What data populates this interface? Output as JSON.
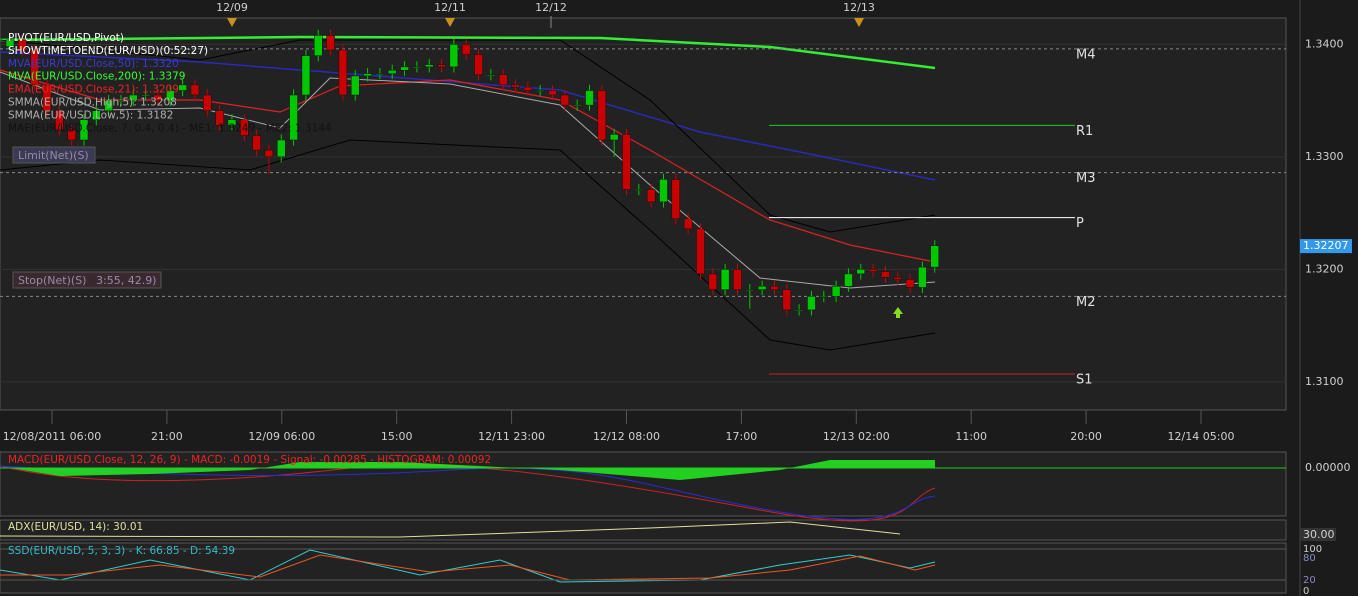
{
  "top_dates": [
    "12/09",
    "12/11",
    "12/12",
    "12/13"
  ],
  "indicators": [
    {
      "text": "PIVOT(EUR/USD,Pivot)",
      "color": "#ffffff"
    },
    {
      "text": "SHOWTIMETOEND(EUR/USD)(0:52:27)",
      "color": "#ffffff"
    },
    {
      "text": "MVA(EUR/USD.Close,50): 1.3320",
      "color": "#3a3ad8"
    },
    {
      "text": "MVA(EUR/USD.Close,200): 1.3379",
      "color": "#33ff33"
    },
    {
      "text": "EMA(EUR/USD.Close,21): 1.3209",
      "color": "#ee2222"
    },
    {
      "text": "SMMA(EUR/USD.High,5): 1.3208",
      "color": "#b0b0b0"
    },
    {
      "text": "SMMA(EUR/USD.Low,5): 1.3182",
      "color": "#b0b0b0"
    },
    {
      "text": "MAE(EUR/USD.Close, 7, 0.4, 0.4) - ME1: 1.3249 - ME2: 1.3144",
      "color": "#111111"
    }
  ],
  "buttons": {
    "limit": "Limit(Net)(S)",
    "stop": "Stop(Net)(S)",
    "stop_value": "3:55, 42.9)"
  },
  "price_axis": {
    "ylim": [
      1.3075,
      1.3411
    ],
    "yticks": [
      {
        "value": 1.34,
        "label": "1.3400"
      },
      {
        "value": 1.33,
        "label": "1.3300"
      },
      {
        "value": 1.32,
        "label": "1.3200"
      },
      {
        "value": 1.31,
        "label": "1.3100"
      }
    ],
    "current_price": 1.32207
  },
  "pivots": [
    {
      "label": "M4",
      "value": 1.3396,
      "color": "#888888",
      "dashed": true
    },
    {
      "label": "R1",
      "value": 1.3328,
      "color": "#22cc22",
      "dashed": false
    },
    {
      "label": "M3",
      "value": 1.3286,
      "color": "#888888",
      "dashed": true
    },
    {
      "label": "P",
      "value": 1.3246,
      "color": "#ffffff",
      "dashed": false
    },
    {
      "label": "M2",
      "value": 1.3176,
      "color": "#888888",
      "dashed": true
    },
    {
      "label": "S1",
      "value": 1.3107,
      "color": "#cc2222",
      "dashed": false
    }
  ],
  "candles": [
    [
      1.3398,
      1.3409,
      1.3393,
      1.3404
    ],
    [
      1.3404,
      1.3409,
      1.339,
      1.3395
    ],
    [
      1.3395,
      1.34,
      1.3359,
      1.3364
    ],
    [
      1.3364,
      1.3369,
      1.3336,
      1.3341
    ],
    [
      1.3341,
      1.3346,
      1.3319,
      1.3324
    ],
    [
      1.3324,
      1.3329,
      1.331,
      1.3315
    ],
    [
      1.3315,
      1.3338,
      1.331,
      1.3333
    ],
    [
      1.3333,
      1.3346,
      1.3328,
      1.3341
    ],
    [
      1.3341,
      1.3355,
      1.3336,
      1.335
    ],
    [
      1.335,
      1.3355,
      1.3345,
      1.335
    ],
    [
      1.335,
      1.336,
      1.3345,
      1.3355
    ],
    [
      1.3355,
      1.336,
      1.335,
      1.3355
    ],
    [
      1.3355,
      1.336,
      1.3345,
      1.335
    ],
    [
      1.335,
      1.3364,
      1.3345,
      1.3359
    ],
    [
      1.3359,
      1.3369,
      1.3354,
      1.3364
    ],
    [
      1.3364,
      1.3369,
      1.335,
      1.3355
    ],
    [
      1.3355,
      1.336,
      1.3336,
      1.3341
    ],
    [
      1.3341,
      1.3346,
      1.3323,
      1.3328
    ],
    [
      1.3328,
      1.3338,
      1.3323,
      1.3333
    ],
    [
      1.3333,
      1.3338,
      1.3314,
      1.3319
    ],
    [
      1.3319,
      1.3324,
      1.3301,
      1.3306
    ],
    [
      1.3306,
      1.3311,
      1.3285,
      1.33
    ],
    [
      1.33,
      1.332,
      1.3295,
      1.3315
    ],
    [
      1.3315,
      1.336,
      1.331,
      1.3355
    ],
    [
      1.3355,
      1.3395,
      1.335,
      1.339
    ],
    [
      1.339,
      1.3413,
      1.3385,
      1.3408
    ],
    [
      1.3408,
      1.3413,
      1.339,
      1.3395
    ],
    [
      1.3395,
      1.34,
      1.335,
      1.3355
    ],
    [
      1.3355,
      1.3377,
      1.335,
      1.3372
    ],
    [
      1.3372,
      1.3379,
      1.3367,
      1.3374
    ],
    [
      1.3374,
      1.3379,
      1.3369,
      1.3374
    ],
    [
      1.3374,
      1.3382,
      1.3369,
      1.3377
    ],
    [
      1.3377,
      1.3385,
      1.3372,
      1.338
    ],
    [
      1.338,
      1.3385,
      1.3375,
      1.338
    ],
    [
      1.338,
      1.3387,
      1.3375,
      1.3382
    ],
    [
      1.3382,
      1.3387,
      1.3375,
      1.338
    ],
    [
      1.338,
      1.3405,
      1.3375,
      1.34
    ],
    [
      1.34,
      1.3405,
      1.3386,
      1.3391
    ],
    [
      1.3391,
      1.3396,
      1.3368,
      1.3373
    ],
    [
      1.3373,
      1.3378,
      1.3368,
      1.3373
    ],
    [
      1.3373,
      1.3378,
      1.3359,
      1.3364
    ],
    [
      1.3364,
      1.3369,
      1.3357,
      1.3362
    ],
    [
      1.3362,
      1.3367,
      1.3354,
      1.3359
    ],
    [
      1.3359,
      1.3364,
      1.3354,
      1.3359
    ],
    [
      1.3359,
      1.3364,
      1.335,
      1.3355
    ],
    [
      1.3355,
      1.336,
      1.3341,
      1.3346
    ],
    [
      1.3346,
      1.3351,
      1.3341,
      1.3346
    ],
    [
      1.3346,
      1.3364,
      1.3341,
      1.3359
    ],
    [
      1.3359,
      1.3364,
      1.331,
      1.3315
    ],
    [
      1.3315,
      1.3325,
      1.33,
      1.332
    ],
    [
      1.332,
      1.3325,
      1.3266,
      1.3271
    ],
    [
      1.3271,
      1.3276,
      1.3266,
      1.3271
    ],
    [
      1.3271,
      1.3276,
      1.3255,
      1.326
    ],
    [
      1.326,
      1.3285,
      1.3255,
      1.328
    ],
    [
      1.328,
      1.3285,
      1.324,
      1.3245
    ],
    [
      1.3245,
      1.325,
      1.3231,
      1.3236
    ],
    [
      1.3236,
      1.3241,
      1.3191,
      1.3196
    ],
    [
      1.3196,
      1.3201,
      1.3177,
      1.3182
    ],
    [
      1.3182,
      1.3205,
      1.3177,
      1.32
    ],
    [
      1.32,
      1.3205,
      1.3177,
      1.3182
    ],
    [
      1.3182,
      1.3187,
      1.3165,
      1.3182
    ],
    [
      1.3182,
      1.319,
      1.3177,
      1.3185
    ],
    [
      1.3185,
      1.319,
      1.3177,
      1.3182
    ],
    [
      1.3182,
      1.3187,
      1.3159,
      1.3164
    ],
    [
      1.3164,
      1.3169,
      1.3159,
      1.3164
    ],
    [
      1.3164,
      1.3181,
      1.3159,
      1.3176
    ],
    [
      1.3176,
      1.3181,
      1.3171,
      1.3176
    ],
    [
      1.3176,
      1.319,
      1.3171,
      1.3185
    ],
    [
      1.3185,
      1.3201,
      1.318,
      1.3196
    ],
    [
      1.3196,
      1.3205,
      1.3191,
      1.32
    ],
    [
      1.32,
      1.3205,
      1.3193,
      1.3198
    ],
    [
      1.3198,
      1.3203,
      1.3188,
      1.3193
    ],
    [
      1.3193,
      1.3198,
      1.3186,
      1.3191
    ],
    [
      1.3191,
      1.3196,
      1.3179,
      1.3184
    ],
    [
      1.3184,
      1.3207,
      1.3179,
      1.3202
    ],
    [
      1.3202,
      1.3226,
      1.3197,
      1.3221
    ]
  ],
  "time_labels": [
    "12/08/2011 06:00",
    "21:00",
    "12/09 06:00",
    "15:00",
    "12/11 23:00",
    "12/12 08:00",
    "17:00",
    "12/13 02:00",
    "11:00",
    "20:00",
    "12/14 05:00"
  ],
  "macd": {
    "label": "MACD(EUR/USD.Close, 12, 26, 9) -  MACD: -0.0019 -  Signal: -0.00285 -  HISTOGRAM: 0.00092",
    "axis": "0.00000"
  },
  "adx": {
    "label": "ADX(EUR/USD, 14): 30.01",
    "axis": "30.00"
  },
  "ssd": {
    "label": "SSD(EUR/USD, 5, 3, 3) -  K: 66.85 -  D: 54.39",
    "axis": [
      "100",
      "80",
      "20",
      "0"
    ]
  }
}
